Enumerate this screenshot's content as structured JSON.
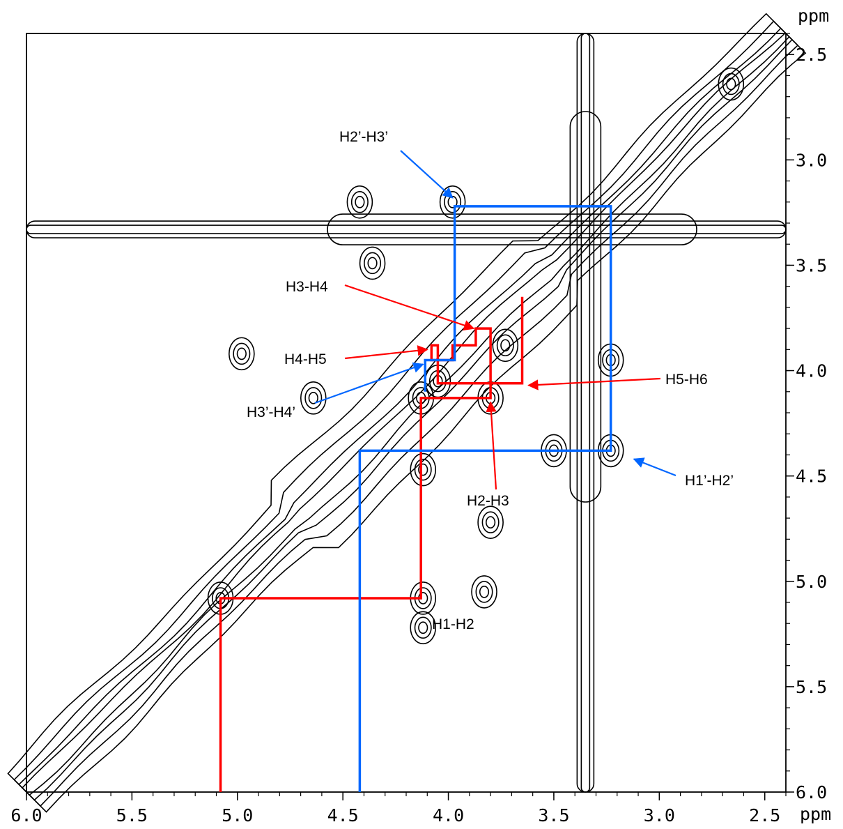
{
  "chart_data": {
    "type": "contour",
    "x_unit": "ppm",
    "y_unit": "ppm",
    "xlim": [
      6.0,
      2.4
    ],
    "ylim": [
      2.4,
      6.0
    ],
    "x_ticks": [
      "6.0",
      "5.5",
      "5.0",
      "4.5",
      "4.0",
      "3.5",
      "3.0",
      "2.5"
    ],
    "y_ticks": [
      "2.5",
      "3.0",
      "3.5",
      "4.0",
      "4.5",
      "5.0",
      "5.5",
      "6.0"
    ],
    "diagonal": {
      "from": [
        6.0,
        6.0
      ],
      "to": [
        2.4,
        2.4
      ]
    },
    "solvent_lines": {
      "horizontal_y": 3.33,
      "vertical_x": 3.35
    },
    "peaks": [
      {
        "x": 5.08,
        "y": 5.08
      },
      {
        "x": 4.12,
        "y": 5.08
      },
      {
        "x": 4.12,
        "y": 4.47
      },
      {
        "x": 4.64,
        "y": 4.13
      },
      {
        "x": 4.13,
        "y": 4.13
      },
      {
        "x": 4.05,
        "y": 4.05
      },
      {
        "x": 3.98,
        "y": 3.2
      },
      {
        "x": 3.8,
        "y": 4.13
      },
      {
        "x": 3.73,
        "y": 3.88
      },
      {
        "x": 3.5,
        "y": 4.38
      },
      {
        "x": 3.23,
        "y": 4.38
      },
      {
        "x": 3.23,
        "y": 3.95
      },
      {
        "x": 4.42,
        "y": 3.2
      },
      {
        "x": 4.36,
        "y": 3.49
      },
      {
        "x": 4.98,
        "y": 3.92
      },
      {
        "x": 3.83,
        "y": 5.05
      },
      {
        "x": 3.8,
        "y": 4.72
      },
      {
        "x": 2.66,
        "y": 2.64
      },
      {
        "x": 4.12,
        "y": 5.22
      }
    ],
    "series": [
      {
        "color": "#ff0000",
        "points": [
          [
            5.08,
            6.0
          ],
          [
            5.08,
            5.08
          ],
          [
            4.13,
            5.08
          ],
          [
            4.13,
            4.13
          ],
          [
            3.8,
            4.13
          ],
          [
            3.8,
            3.8
          ],
          [
            3.87,
            3.8
          ],
          [
            3.87,
            3.88
          ],
          [
            3.98,
            3.88
          ],
          [
            3.98,
            3.95
          ],
          [
            4.08,
            3.95
          ],
          [
            4.08,
            3.88
          ],
          [
            4.05,
            3.88
          ],
          [
            4.05,
            4.06
          ],
          [
            3.65,
            4.06
          ],
          [
            3.65,
            3.65
          ]
        ]
      },
      {
        "color": "#0066ff",
        "points": [
          [
            4.42,
            6.0
          ],
          [
            4.42,
            4.38
          ],
          [
            3.23,
            4.38
          ],
          [
            3.23,
            3.22
          ],
          [
            3.97,
            3.22
          ],
          [
            3.97,
            3.95
          ],
          [
            4.11,
            3.95
          ],
          [
            4.11,
            4.1
          ]
        ]
      }
    ],
    "annotations": [
      {
        "text": "H2’-H3’",
        "color": "#0066ff",
        "target": [
          3.98,
          3.18
        ]
      },
      {
        "text": "H3-H4",
        "color": "#ff0000",
        "target": [
          3.88,
          3.8
        ]
      },
      {
        "text": "H4-H5",
        "color": "#ff0000",
        "target": [
          4.1,
          3.9
        ]
      },
      {
        "text": "H3’-H4’",
        "color": "#0066ff",
        "target": [
          4.12,
          3.97
        ]
      },
      {
        "text": "H5-H6",
        "color": "#ff0000",
        "target": [
          3.62,
          4.07
        ]
      },
      {
        "text": "H2-H3",
        "color": "#ff0000",
        "target": [
          3.8,
          4.15
        ]
      },
      {
        "text": "H1’-H2’",
        "color": "#0066ff",
        "target": [
          3.12,
          4.42
        ]
      },
      {
        "text": "H1-H2",
        "color": "#000000",
        "target": null
      }
    ]
  }
}
